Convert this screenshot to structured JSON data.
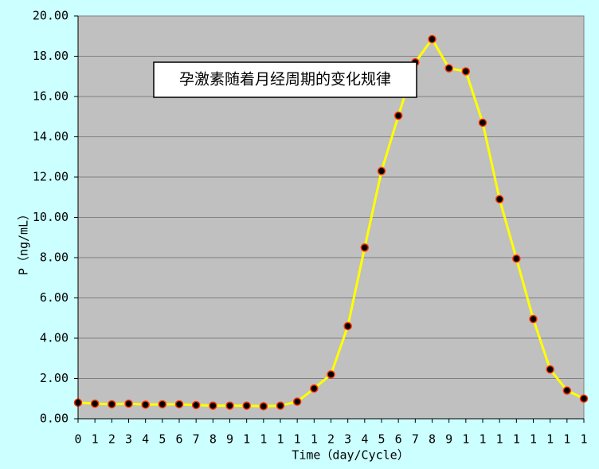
{
  "chart_data": {
    "type": "line",
    "annotation": "孕激素随着月经周期的变化规律",
    "x_label": "Time（day/Cycle）",
    "y_label": "P（ng/mL）",
    "categories": [
      "0",
      "1",
      "2",
      "3",
      "4",
      "5",
      "6",
      "7",
      "8",
      "9",
      "1",
      "1",
      "1",
      "1",
      "1",
      "2",
      "3",
      "4",
      "5",
      "6",
      "7",
      "8",
      "9",
      "1",
      "1",
      "1",
      "1",
      "1",
      "1",
      "1",
      "1"
    ],
    "series": [
      {
        "color": "#ffff00",
        "marker_color": "#000000",
        "marker_edge": "#ff3300",
        "values": [
          0.8,
          0.75,
          0.72,
          0.75,
          0.7,
          0.72,
          0.72,
          0.68,
          0.65,
          0.65,
          0.65,
          0.62,
          0.65,
          0.85,
          1.5,
          2.2,
          4.6,
          8.5,
          12.3,
          15.05,
          17.7,
          18.85,
          17.4,
          17.25,
          14.7,
          10.9,
          7.95,
          4.95,
          2.45,
          1.4,
          1.0
        ]
      }
    ],
    "ylim": [
      0,
      20
    ],
    "yticks": [
      {
        "value": 0,
        "label": "0.00"
      },
      {
        "value": 2,
        "label": "2.00"
      },
      {
        "value": 4,
        "label": "4.00"
      },
      {
        "value": 6,
        "label": "6.00"
      },
      {
        "value": 8,
        "label": "8.00"
      },
      {
        "value": 10,
        "label": "10.00"
      },
      {
        "value": 12,
        "label": "12.00"
      },
      {
        "value": 14,
        "label": "14.00"
      },
      {
        "value": 16,
        "label": "16.00"
      },
      {
        "value": 18,
        "label": "18.00"
      },
      {
        "value": 20,
        "label": "20.00"
      }
    ],
    "grid": true
  }
}
